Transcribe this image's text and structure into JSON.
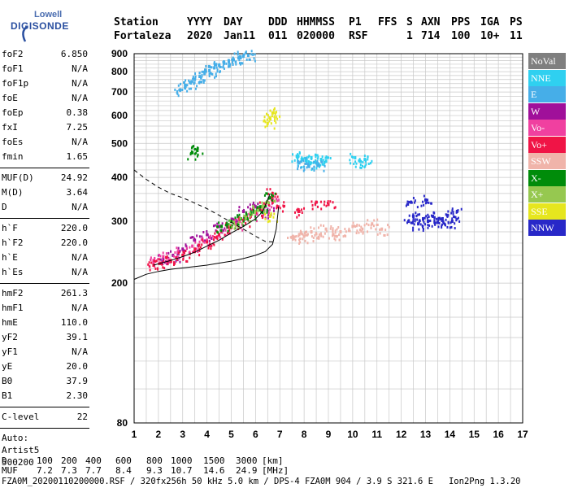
{
  "logo": {
    "line1": "Lowell",
    "line2": "DIGISONDE"
  },
  "header": {
    "labels": [
      "Station",
      "YYYY",
      "DAY",
      "DDD",
      "HHMMSS",
      "P1",
      "FFS",
      "S",
      "AXN",
      "PPS",
      "IGA",
      "PS"
    ],
    "values": [
      "Fortaleza",
      "2020",
      "Jan11",
      "011",
      "020000",
      "RSF",
      "",
      "1",
      "714",
      "100",
      "10+",
      "11"
    ]
  },
  "params": {
    "group1": [
      {
        "name": "foF2",
        "value": "6.850"
      },
      {
        "name": "foF1",
        "value": "N/A"
      },
      {
        "name": "foF1p",
        "value": "N/A"
      },
      {
        "name": "foE",
        "value": "N/A"
      },
      {
        "name": "foEp",
        "value": "0.38"
      },
      {
        "name": "fxI",
        "value": "7.25"
      },
      {
        "name": "foEs",
        "value": "N/A"
      },
      {
        "name": "fmin",
        "value": "1.65"
      }
    ],
    "group2": [
      {
        "name": "MUF(D)",
        "value": "24.92"
      },
      {
        "name": "M(D)",
        "value": "3.64"
      },
      {
        "name": "D",
        "value": "N/A"
      }
    ],
    "group3": [
      {
        "name": "h`F",
        "value": "220.0"
      },
      {
        "name": "h`F2",
        "value": "220.0"
      },
      {
        "name": "h`E",
        "value": "N/A"
      },
      {
        "name": "h`Es",
        "value": "N/A"
      }
    ],
    "group4": [
      {
        "name": "hmF2",
        "value": "261.3"
      },
      {
        "name": "hmF1",
        "value": "N/A"
      },
      {
        "name": "hmE",
        "value": "110.0"
      },
      {
        "name": "yF2",
        "value": "39.1"
      },
      {
        "name": "yF1",
        "value": "N/A"
      },
      {
        "name": "yE",
        "value": "20.0"
      },
      {
        "name": "B0",
        "value": "37.9"
      },
      {
        "name": "B1",
        "value": "2.30"
      }
    ],
    "clevel": {
      "name": "C-level",
      "value": "22"
    },
    "auto": [
      "Auto:",
      "Artist5",
      "500200"
    ]
  },
  "legend": [
    {
      "label": "NoVal",
      "color": "#7f7f7f"
    },
    {
      "label": "NNE",
      "color": "#2fd0f0"
    },
    {
      "label": "E",
      "color": "#46aee8"
    },
    {
      "label": "W",
      "color": "#a0109a"
    },
    {
      "label": "Vo-",
      "color": "#f040a0"
    },
    {
      "label": "Vo+",
      "color": "#f01446"
    },
    {
      "label": "SSW",
      "color": "#f0b4aa"
    },
    {
      "label": "X-",
      "color": "#008c0a"
    },
    {
      "label": "X+",
      "color": "#96c850"
    },
    {
      "label": "SSE",
      "color": "#e6e61e"
    },
    {
      "label": "NNW",
      "color": "#2828c8"
    }
  ],
  "footer": {
    "d_row": {
      "label": "D",
      "values": [
        "100",
        "200",
        "400",
        "600",
        "800",
        "1000",
        "1500",
        "3000",
        "[km]"
      ]
    },
    "muf_row": {
      "label": "MUF",
      "values": [
        "7.2",
        "7.3",
        "7.7",
        "8.4",
        "9.3",
        "10.7",
        "14.6",
        "24.9",
        "[MHz]"
      ]
    },
    "file_line": "FZA0M_20200110200000.RSF / 320fx256h 50 kHz 5.0 km / DPS-4 FZA0M 904 / 3.9 S 321.6 E   Ion2Png 1.3.20"
  },
  "chart_data": {
    "type": "scatter",
    "title": "",
    "xlabel": "",
    "ylabel": "",
    "xlim": [
      1,
      17
    ],
    "ylim": [
      80,
      900
    ],
    "x_ticks": [
      1,
      2,
      3,
      4,
      5,
      6,
      7,
      8,
      9,
      10,
      11,
      12,
      13,
      14,
      15,
      16,
      17
    ],
    "y_ticks": [
      80,
      200,
      300,
      400,
      500,
      600,
      700,
      800,
      900
    ],
    "y_scale": "log",
    "grid": true,
    "legend_position": "right",
    "series": [
      {
        "name": "NNE",
        "color": "#2fd0f0",
        "points": [
          [
            7.7,
            460
          ],
          [
            7.9,
            450
          ],
          [
            8.1,
            445
          ],
          [
            8.3,
            455
          ],
          [
            8.5,
            440
          ],
          [
            8.7,
            450
          ],
          [
            8.9,
            445
          ],
          [
            10.1,
            455
          ],
          [
            10.3,
            445
          ],
          [
            10.5,
            450
          ]
        ]
      },
      {
        "name": "E",
        "color": "#46aee8",
        "points": [
          [
            2.9,
            710
          ],
          [
            3.1,
            725
          ],
          [
            3.3,
            745
          ],
          [
            3.5,
            760
          ],
          [
            3.7,
            775
          ],
          [
            3.9,
            790
          ],
          [
            4.1,
            805
          ],
          [
            4.3,
            820
          ],
          [
            4.5,
            835
          ],
          [
            4.7,
            845
          ],
          [
            4.9,
            855
          ],
          [
            5.1,
            865
          ],
          [
            5.3,
            875
          ],
          [
            5.5,
            885
          ],
          [
            5.7,
            890
          ],
          [
            7.8,
            440
          ],
          [
            8.2,
            430
          ],
          [
            8.6,
            435
          ]
        ]
      },
      {
        "name": "W",
        "color": "#a0109a",
        "points": [
          [
            2.2,
            235
          ],
          [
            2.6,
            240
          ],
          [
            3.0,
            250
          ],
          [
            3.5,
            265
          ],
          [
            4.0,
            275
          ],
          [
            4.5,
            290
          ],
          [
            5.0,
            300
          ],
          [
            5.5,
            320
          ],
          [
            6.0,
            330
          ],
          [
            6.5,
            320
          ]
        ]
      },
      {
        "name": "Vo-",
        "color": "#f040a0",
        "points": [
          [
            1.8,
            232
          ],
          [
            2.2,
            238
          ],
          [
            2.8,
            245
          ],
          [
            3.4,
            255
          ],
          [
            4.0,
            265
          ],
          [
            4.6,
            280
          ],
          [
            5.2,
            295
          ],
          [
            5.8,
            310
          ],
          [
            6.3,
            325
          ],
          [
            6.7,
            340
          ]
        ]
      },
      {
        "name": "Vo+",
        "color": "#f01446",
        "points": [
          [
            1.8,
            225
          ],
          [
            2.1,
            228
          ],
          [
            2.5,
            232
          ],
          [
            3.0,
            240
          ],
          [
            3.5,
            250
          ],
          [
            4.0,
            262
          ],
          [
            4.5,
            275
          ],
          [
            5.0,
            288
          ],
          [
            5.5,
            302
          ],
          [
            6.0,
            318
          ],
          [
            6.4,
            335
          ],
          [
            6.7,
            360
          ],
          [
            6.9,
            330
          ],
          [
            7.8,
            320
          ],
          [
            8.5,
            340
          ],
          [
            9.0,
            335
          ]
        ]
      },
      {
        "name": "SSW",
        "color": "#f0b4aa",
        "points": [
          [
            7.5,
            270
          ],
          [
            7.8,
            275
          ],
          [
            8.0,
            272
          ],
          [
            8.3,
            280
          ],
          [
            8.6,
            270
          ],
          [
            8.9,
            285
          ],
          [
            9.2,
            275
          ],
          [
            9.5,
            280
          ],
          [
            10.0,
            290
          ],
          [
            10.4,
            285
          ],
          [
            10.8,
            295
          ],
          [
            11.2,
            285
          ]
        ]
      },
      {
        "name": "X-",
        "color": "#008c0a",
        "points": [
          [
            4.6,
            290
          ],
          [
            5.0,
            300
          ],
          [
            5.4,
            305
          ],
          [
            5.8,
            315
          ],
          [
            6.2,
            330
          ],
          [
            6.6,
            350
          ],
          [
            3.4,
            470
          ],
          [
            3.6,
            478
          ]
        ]
      },
      {
        "name": "X+",
        "color": "#96c850",
        "points": [
          [
            5.1,
            298
          ],
          [
            5.6,
            308
          ],
          [
            6.1,
            322
          ],
          [
            6.5,
            340
          ]
        ]
      },
      {
        "name": "SSE",
        "color": "#e6e61e",
        "points": [
          [
            6.5,
            570
          ],
          [
            6.6,
            590
          ],
          [
            6.7,
            610
          ],
          [
            6.6,
            310
          ]
        ]
      },
      {
        "name": "NNW",
        "color": "#2828c8",
        "points": [
          [
            12.3,
            300
          ],
          [
            12.5,
            310
          ],
          [
            12.7,
            295
          ],
          [
            12.9,
            305
          ],
          [
            13.1,
            300
          ],
          [
            13.3,
            310
          ],
          [
            13.5,
            298
          ],
          [
            13.7,
            305
          ],
          [
            13.9,
            312
          ],
          [
            14.1,
            300
          ],
          [
            12.4,
            340
          ],
          [
            13.0,
            345
          ],
          [
            14.3,
            320
          ]
        ]
      }
    ],
    "traces": [
      {
        "name": "virtual height trace",
        "style": "solid",
        "points": [
          [
            1.0,
            205
          ],
          [
            1.5,
            212
          ],
          [
            2.0,
            216
          ],
          [
            2.5,
            219
          ],
          [
            3.0,
            221
          ],
          [
            3.5,
            223
          ],
          [
            4.0,
            225
          ],
          [
            4.5,
            228
          ],
          [
            5.0,
            231
          ],
          [
            5.5,
            235
          ],
          [
            6.0,
            240
          ],
          [
            6.4,
            246
          ],
          [
            6.7,
            258
          ],
          [
            6.85,
            285
          ],
          [
            6.95,
            330
          ]
        ]
      },
      {
        "name": "lower overlay",
        "style": "solid",
        "points": [
          [
            1.8,
            225
          ],
          [
            2.5,
            232
          ],
          [
            3.0,
            238
          ],
          [
            3.5,
            245
          ],
          [
            4.0,
            255
          ],
          [
            4.5,
            265
          ],
          [
            5.0,
            278
          ],
          [
            5.5,
            290
          ],
          [
            6.0,
            305
          ],
          [
            6.3,
            320
          ],
          [
            6.6,
            360
          ]
        ]
      },
      {
        "name": "profile",
        "style": "dashed",
        "points": [
          [
            1.0,
            420
          ],
          [
            1.5,
            395
          ],
          [
            2.0,
            375
          ],
          [
            2.5,
            360
          ],
          [
            3.0,
            350
          ],
          [
            3.5,
            338
          ],
          [
            4.0,
            326
          ],
          [
            4.5,
            312
          ],
          [
            5.0,
            298
          ],
          [
            5.5,
            285
          ],
          [
            6.0,
            272
          ],
          [
            6.4,
            263
          ],
          [
            6.8,
            262
          ]
        ]
      }
    ]
  }
}
